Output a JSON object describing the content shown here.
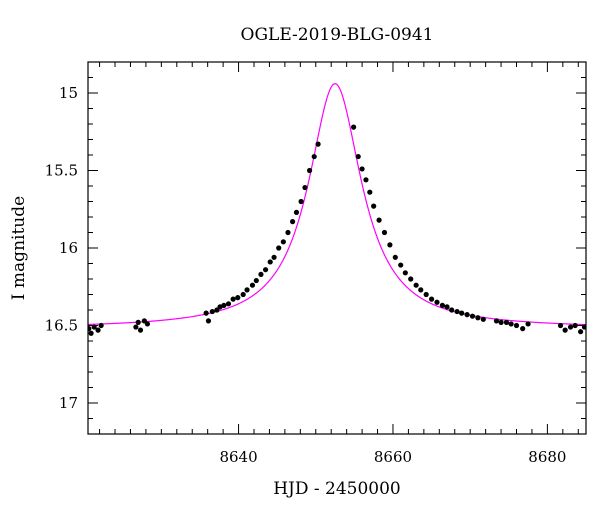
{
  "chart_data": {
    "type": "scatter",
    "title": "OGLE-2019-BLG-0941",
    "xlabel": "HJD - 2450000",
    "ylabel": "I magnitude",
    "xlim": [
      8620.5,
      8685
    ],
    "ylim": [
      17.2,
      14.8
    ],
    "y_inverted": true,
    "grid": false,
    "xticks": [
      8640,
      8660,
      8680
    ],
    "yticks": [
      15,
      15.5,
      16,
      16.5,
      17
    ],
    "x_minor_step": 2,
    "y_minor_step": 0.1,
    "points_color": "#000000",
    "model_color": "#ff00ff",
    "model": {
      "t0": 8652.5,
      "peak_mag": 14.94,
      "baseline_mag": 16.52,
      "half_width": 4.2,
      "name": ""
    },
    "series": [
      {
        "name": "",
        "x": [
          8620.6,
          8620.9,
          8621.3,
          8621.8,
          8622.2,
          8626.7,
          8627.0,
          8627.3,
          8627.8,
          8628.2,
          8635.8,
          8636.1,
          8636.6,
          8637.2,
          8637.6,
          8638.1,
          8638.7,
          8639.3,
          8639.9,
          8640.6,
          8641.1,
          8641.8,
          8642.3,
          8642.9,
          8643.5,
          8644.1,
          8644.6,
          8645.2,
          8645.8,
          8646.4,
          8647.0,
          8647.5,
          8648.1,
          8648.6,
          8649.2,
          8649.8,
          8650.3,
          8654.9,
          8655.5,
          8656.0,
          8656.5,
          8657.0,
          8657.5,
          8658.2,
          8658.9,
          8659.6,
          8660.3,
          8661.0,
          8661.6,
          8662.3,
          8663.0,
          8663.6,
          8664.3,
          8665.0,
          8665.7,
          8666.4,
          8667.0,
          8667.6,
          8668.3,
          8668.9,
          8669.6,
          8670.3,
          8671.0,
          8671.7,
          8673.4,
          8674.0,
          8674.7,
          8675.3,
          8676.0,
          8676.8,
          8677.5,
          8681.7,
          8682.3,
          8683.0,
          8683.6,
          8684.3,
          8684.8
        ],
        "y": [
          16.52,
          16.55,
          16.51,
          16.53,
          16.5,
          16.51,
          16.48,
          16.53,
          16.47,
          16.49,
          16.42,
          16.47,
          16.41,
          16.4,
          16.38,
          16.37,
          16.36,
          16.33,
          16.32,
          16.3,
          16.27,
          16.24,
          16.21,
          16.17,
          16.14,
          16.09,
          16.06,
          16.0,
          15.96,
          15.9,
          15.83,
          15.77,
          15.7,
          15.61,
          15.5,
          15.41,
          15.33,
          15.22,
          15.41,
          15.49,
          15.56,
          15.64,
          15.73,
          15.82,
          15.9,
          15.98,
          16.06,
          16.11,
          16.16,
          16.2,
          16.24,
          16.27,
          16.3,
          16.33,
          16.35,
          16.37,
          16.38,
          16.4,
          16.41,
          16.42,
          16.43,
          16.44,
          16.45,
          16.46,
          16.47,
          16.48,
          16.48,
          16.49,
          16.5,
          16.52,
          16.49,
          16.5,
          16.53,
          16.51,
          16.5,
          16.54,
          16.51
        ]
      }
    ]
  }
}
